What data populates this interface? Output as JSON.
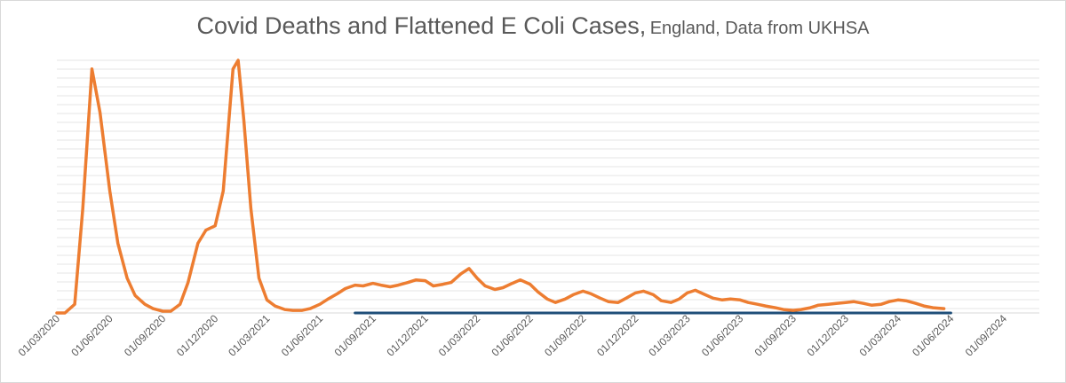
{
  "chart_data": {
    "type": "line",
    "title": "Covid Deaths and Flattened E Coli Cases,",
    "subtitle": "England, Data from UKHSA",
    "xlabel": "",
    "ylabel": "",
    "x_tick_labels": [
      "01/03/2020",
      "01/06/2020",
      "01/09/2020",
      "01/12/2020",
      "01/03/2021",
      "01/06/2021",
      "01/09/2021",
      "01/12/2021",
      "01/03/2022",
      "01/06/2022",
      "01/09/2022",
      "01/12/2022",
      "01/03/2023",
      "01/06/2023",
      "01/09/2023",
      "01/12/2023",
      "01/03/2024",
      "01/06/2024",
      "01/09/2024"
    ],
    "y_tick_labels_shown": false,
    "ylim": [
      0,
      29
    ],
    "gridlines": true,
    "legend": "none",
    "series": [
      {
        "color": "#ED7D31",
        "x": [
          "01/03/2020",
          "15/03/2020",
          "01/04/2020",
          "15/04/2020",
          "01/05/2020",
          "15/05/2020",
          "01/06/2020",
          "15/06/2020",
          "01/07/2020",
          "15/07/2020",
          "01/08/2020",
          "15/08/2020",
          "01/09/2020",
          "15/09/2020",
          "01/10/2020",
          "15/10/2020",
          "01/11/2020",
          "15/11/2020",
          "01/12/2020",
          "15/12/2020",
          "01/01/2021",
          "10/01/2021",
          "20/01/2021",
          "01/02/2021",
          "15/02/2021",
          "01/03/2021",
          "15/03/2021",
          "01/04/2021",
          "15/04/2021",
          "01/05/2021",
          "15/05/2021",
          "01/06/2021",
          "15/06/2021",
          "01/07/2021",
          "15/07/2021",
          "01/08/2021",
          "15/08/2021",
          "01/09/2021",
          "15/09/2021",
          "01/10/2021",
          "15/10/2021",
          "01/11/2021",
          "15/11/2021",
          "01/12/2021",
          "15/12/2021",
          "01/01/2022",
          "15/01/2022",
          "01/02/2022",
          "15/02/2022",
          "01/03/2022",
          "15/03/2022",
          "01/04/2022",
          "15/04/2022",
          "01/05/2022",
          "15/05/2022",
          "01/06/2022",
          "15/06/2022",
          "01/07/2022",
          "15/07/2022",
          "01/08/2022",
          "15/08/2022",
          "01/09/2022",
          "15/09/2022",
          "01/10/2022",
          "15/10/2022",
          "01/11/2022",
          "15/11/2022",
          "01/12/2022",
          "15/12/2022",
          "01/01/2023",
          "15/01/2023",
          "01/02/2023",
          "15/02/2023",
          "01/03/2023",
          "15/03/2023",
          "01/04/2023",
          "15/04/2023",
          "01/05/2023",
          "15/05/2023",
          "01/06/2023",
          "15/06/2023",
          "01/07/2023",
          "15/07/2023",
          "01/08/2023",
          "15/08/2023",
          "01/09/2023",
          "15/09/2023",
          "01/10/2023",
          "15/10/2023",
          "01/11/2023",
          "15/11/2023",
          "01/12/2023",
          "15/12/2023",
          "01/01/2024",
          "15/01/2024",
          "01/02/2024",
          "15/02/2024",
          "01/03/2024",
          "15/03/2024",
          "01/04/2024",
          "15/04/2024",
          "01/05/2024",
          "20/05/2024"
        ],
        "values": [
          0,
          0,
          1,
          12,
          28,
          23,
          14,
          8,
          4,
          2,
          1,
          0.5,
          0.2,
          0.2,
          1,
          3.5,
          8,
          9.5,
          10,
          14,
          28,
          29,
          22,
          12,
          4,
          1.5,
          0.8,
          0.4,
          0.3,
          0.3,
          0.5,
          1,
          1.6,
          2.2,
          2.8,
          3.2,
          3.1,
          3.4,
          3.2,
          3,
          3.2,
          3.5,
          3.8,
          3.7,
          3.1,
          3.3,
          3.5,
          4.5,
          5.1,
          4,
          3.1,
          2.7,
          2.9,
          3.4,
          3.8,
          3.3,
          2.4,
          1.6,
          1.2,
          1.6,
          2.1,
          2.5,
          2.2,
          1.7,
          1.3,
          1.2,
          1.7,
          2.3,
          2.5,
          2.1,
          1.4,
          1.2,
          1.6,
          2.3,
          2.6,
          2.1,
          1.7,
          1.5,
          1.6,
          1.5,
          1.2,
          1,
          0.8,
          0.6,
          0.4,
          0.3,
          0.4,
          0.6,
          0.9,
          1,
          1.1,
          1.2,
          1.3,
          1.1,
          0.9,
          1,
          1.3,
          1.5,
          1.4,
          1.1,
          0.8,
          0.6,
          0.5
        ]
      },
      {
        "color": "#1F4E79",
        "x": [
          "01/08/2021",
          "01/06/2024"
        ],
        "values": [
          0,
          0
        ]
      }
    ]
  }
}
